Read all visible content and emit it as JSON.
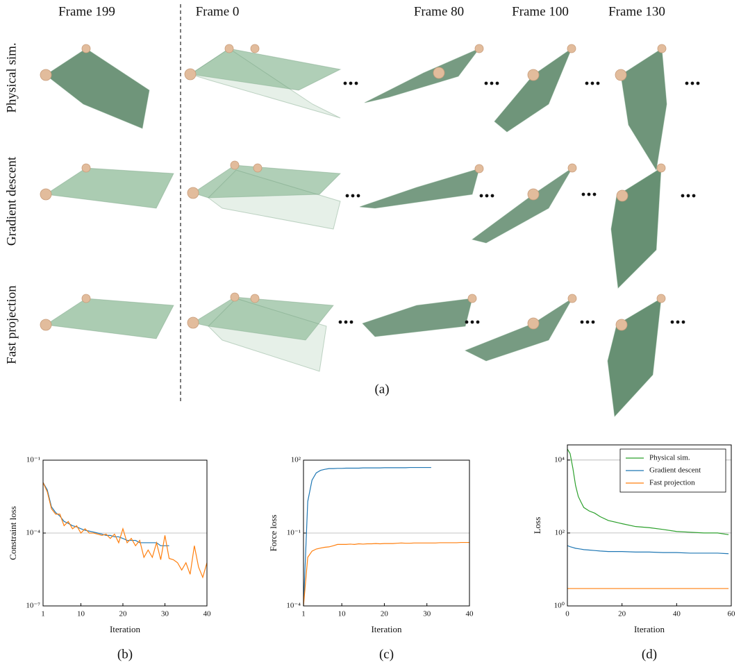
{
  "panel_a": {
    "column_labels": [
      "Frame 199",
      "Frame 0",
      "Frame 80",
      "Frame 100",
      "Frame 130"
    ],
    "row_labels": [
      "Physical sim.",
      "Gradient descent",
      "Fast projection"
    ],
    "caption": "(a)"
  },
  "chart_data": [
    {
      "type": "line",
      "caption": "(b)",
      "xlabel": "Iteration",
      "ylabel": "Constraint loss",
      "log_y": true,
      "x": [
        1,
        2,
        3,
        4,
        5,
        6,
        7,
        8,
        9,
        10,
        11,
        12,
        13,
        14,
        15,
        16,
        17,
        18,
        19,
        20,
        21,
        22,
        23,
        24,
        25,
        26,
        27,
        28,
        29,
        30,
        31,
        32,
        33,
        34,
        35,
        36,
        37,
        38,
        39,
        40
      ],
      "xlim": [
        1,
        40
      ],
      "xticks": [
        1,
        10,
        20,
        30,
        40
      ],
      "ylim": [
        1e-07,
        0.1
      ],
      "yticks": [
        {
          "value": 1e-07,
          "label": "10⁻⁷"
        },
        {
          "value": 0.0001,
          "label": "10⁻⁴"
        },
        {
          "value": 0.1,
          "label": "10⁻¹"
        }
      ],
      "grid": true,
      "series": [
        {
          "color": "#1f77b4",
          "values": [
            0.012,
            0.006,
            0.0012,
            0.0007,
            0.0005,
            0.0003,
            0.00025,
            0.0002,
            0.00018,
            0.00015,
            0.00013,
            0.00012,
            0.00011,
            0.0001,
            9e-05,
            8e-05,
            8e-05,
            7e-05,
            7e-05,
            6e-05,
            5e-05,
            5e-05,
            5e-05,
            4e-05,
            4e-05,
            4e-05,
            4e-05,
            4e-05,
            3e-05,
            3e-05,
            3e-05,
            null,
            null,
            null,
            null,
            null,
            null,
            null,
            null,
            null
          ]
        },
        {
          "color": "#ff7f0e",
          "values": [
            0.012,
            0.005,
            0.001,
            0.0006,
            0.0006,
            0.0002,
            0.0003,
            0.00015,
            0.0002,
            0.0001,
            0.00015,
            0.0001,
            0.0001,
            9e-05,
            8e-05,
            9e-05,
            6e-05,
            9e-05,
            4e-05,
            0.00015,
            4e-05,
            6e-05,
            3e-05,
            5e-05,
            1e-05,
            2e-05,
            1e-05,
            4e-05,
            8e-06,
            8e-05,
            9e-06,
            8e-06,
            6e-06,
            3e-06,
            6e-06,
            2e-06,
            3e-05,
            4e-06,
            1.5e-06,
            6e-06
          ]
        }
      ]
    },
    {
      "type": "line",
      "caption": "(c)",
      "xlabel": "Iteration",
      "ylabel": "Force loss",
      "log_y": true,
      "x": [
        1,
        2,
        3,
        4,
        5,
        6,
        7,
        8,
        9,
        10,
        11,
        12,
        13,
        14,
        15,
        16,
        17,
        18,
        19,
        20,
        21,
        22,
        23,
        24,
        25,
        26,
        27,
        28,
        29,
        30,
        31,
        32,
        33,
        34,
        35,
        36,
        37,
        38,
        39,
        40
      ],
      "xlim": [
        1,
        40
      ],
      "xticks": [
        1,
        10,
        20,
        30,
        40
      ],
      "ylim": [
        0.0001,
        100
      ],
      "yticks": [
        {
          "value": 0.0001,
          "label": "10⁻⁴"
        },
        {
          "value": 0.1,
          "label": "10⁻¹"
        },
        {
          "value": 100,
          "label": "10²"
        }
      ],
      "grid": true,
      "series": [
        {
          "color": "#1f77b4",
          "values": [
            0.0001,
            2,
            15,
            30,
            38,
            42,
            45,
            45,
            46,
            46,
            47,
            47,
            47,
            47,
            48,
            48,
            48,
            48,
            48,
            49,
            49,
            49,
            49,
            49,
            49,
            50,
            50,
            50,
            50,
            50,
            50,
            null,
            null,
            null,
            null,
            null,
            null,
            null,
            null,
            null
          ]
        },
        {
          "color": "#ff7f0e",
          "values": [
            0.0001,
            0.01,
            0.018,
            0.022,
            0.024,
            0.026,
            0.027,
            0.03,
            0.034,
            0.034,
            0.034,
            0.035,
            0.034,
            0.036,
            0.035,
            0.036,
            0.036,
            0.037,
            0.036,
            0.037,
            0.037,
            0.037,
            0.038,
            0.039,
            0.038,
            0.038,
            0.039,
            0.039,
            0.039,
            0.039,
            0.039,
            0.039,
            0.04,
            0.04,
            0.04,
            0.04,
            0.04,
            0.041,
            0.041,
            0.041
          ]
        }
      ]
    },
    {
      "type": "line",
      "caption": "(d)",
      "xlabel": "Iteration",
      "ylabel": "Loss",
      "log_y": true,
      "x": [
        0,
        1,
        2,
        3,
        4,
        5,
        6,
        8,
        10,
        12,
        15,
        20,
        25,
        30,
        35,
        40,
        45,
        50,
        55,
        59
      ],
      "xlim": [
        0,
        60
      ],
      "xticks": [
        0,
        20,
        40,
        60
      ],
      "ylim": [
        1,
        26000
      ],
      "yticks": [
        {
          "value": 1,
          "label": "10⁰"
        },
        {
          "value": 100,
          "label": "10²"
        },
        {
          "value": 10000,
          "label": "10⁴"
        }
      ],
      "grid": true,
      "legend": "upper right",
      "series": [
        {
          "name": "Physical sim.",
          "color": "#2ca02c",
          "values": [
            20000,
            15000,
            6000,
            2000,
            1000,
            700,
            500,
            400,
            350,
            280,
            220,
            180,
            150,
            140,
            125,
            110,
            105,
            100,
            100,
            90
          ]
        },
        {
          "name": "Gradient descent",
          "color": "#1f77b4",
          "values": [
            45,
            42,
            40,
            38,
            37,
            36,
            35,
            34,
            33,
            32,
            31,
            31,
            30,
            30,
            29,
            29,
            28,
            28,
            28,
            27
          ]
        },
        {
          "name": "Fast projection",
          "color": "#ff7f0e",
          "values": [
            3,
            3,
            3,
            3,
            3,
            3,
            3,
            3,
            3,
            3,
            3,
            3,
            3,
            3,
            3,
            3,
            3,
            3,
            3,
            3
          ]
        }
      ]
    }
  ]
}
